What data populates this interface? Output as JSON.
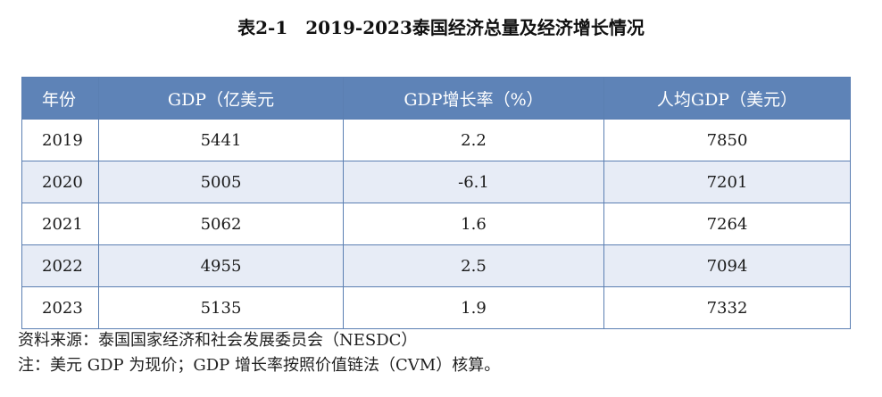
{
  "title": "表2-1　2019-2023泰国经济总量及经济增长情况",
  "table": {
    "headers": [
      "年份",
      "GDP（亿美元",
      "GDP增长率（%）",
      "人均GDP（美元）"
    ],
    "rows": [
      [
        "2019",
        "5441",
        "2.2",
        "7850"
      ],
      [
        "2020",
        "5005",
        "-6.1",
        "7201"
      ],
      [
        "2021",
        "5062",
        "1.6",
        "7264"
      ],
      [
        "2022",
        "4955",
        "2.5",
        "7094"
      ],
      [
        "2023",
        "5135",
        "1.9",
        "7332"
      ]
    ]
  },
  "notes": {
    "source": "资料来源：泰国国家经济和社会发展委员会（NESDC）",
    "footnote": "注：美元 GDP 为现价；GDP 增长率按照价值链法（CVM）核算。"
  },
  "colors": {
    "header_bg": "#5e83b7",
    "stripe_bg": "#e7ecf6",
    "border": "#5b7fb2"
  }
}
